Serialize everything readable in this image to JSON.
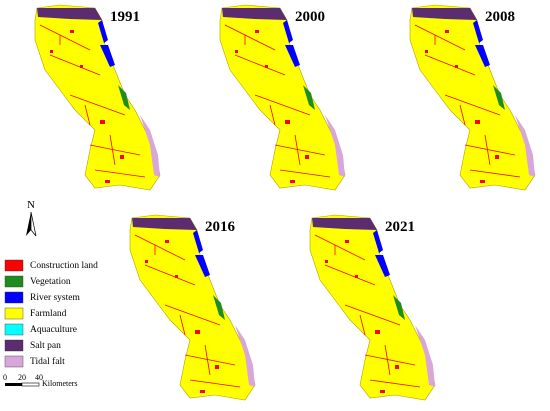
{
  "maps": [
    {
      "year": "1991"
    },
    {
      "year": "2000"
    },
    {
      "year": "2008"
    },
    {
      "year": "2016"
    },
    {
      "year": "2021"
    }
  ],
  "north_arrow": "N",
  "legend": [
    {
      "label": "Construction land",
      "color": "#ff0000"
    },
    {
      "label": "Vegetation",
      "color": "#1e8c1e"
    },
    {
      "label": "River system",
      "color": "#0000ff"
    },
    {
      "label": "Farmland",
      "color": "#ffff00"
    },
    {
      "label": "Aquaculture",
      "color": "#00ffff"
    },
    {
      "label": "Salt pan",
      "color": "#5b2c6f"
    },
    {
      "label": "Tidal falt",
      "color": "#d9a6d9"
    }
  ],
  "scale_bar": {
    "ticks": [
      "0",
      "20",
      "40"
    ],
    "unit": "Kilometers"
  }
}
